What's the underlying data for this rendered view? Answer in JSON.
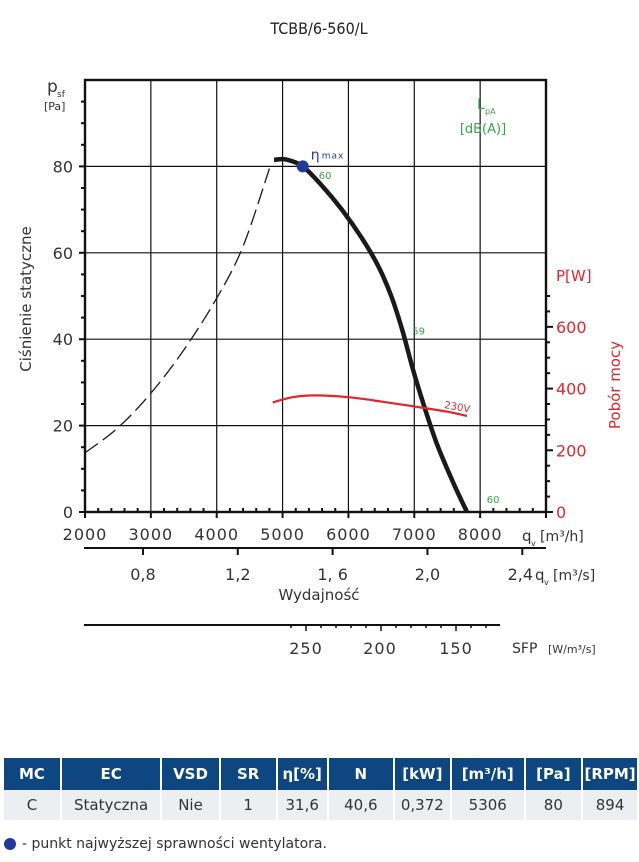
{
  "chart_data": {
    "type": "line",
    "title": "TCBB/6-560/L",
    "xlabel": "Wydajność",
    "x_unit_primary": "q_v [m³/h]",
    "x_unit_secondary": "q_v [m³/s]",
    "x_unit_sfp": "SFP [W/m³/s]",
    "ylabel": "Ciśnienie statyczne",
    "y_unit": "p_sf [Pa]",
    "y2label": "Pobór mocy",
    "y2_unit": "P[W]",
    "lpa_label": "L_pA",
    "lpa_unit": "[dB(A)]",
    "xlim": [
      2000,
      9000
    ],
    "ylim": [
      0,
      100
    ],
    "y2lim": [
      0,
      1400
    ],
    "grid": true,
    "x_ticks": [
      "2000",
      "3000",
      "4000",
      "5000",
      "6000",
      "7000",
      "8000"
    ],
    "x_tick_values": [
      2000,
      3000,
      4000,
      5000,
      6000,
      7000,
      8000
    ],
    "x2_ticks": [
      "0,8",
      "1,2",
      "1, 6",
      "2,0",
      "2,4"
    ],
    "x2_tick_values": [
      0.8,
      1.2,
      1.6,
      2.0,
      2.4
    ],
    "sfp_ticks": [
      "250",
      "200",
      "150"
    ],
    "y_ticks": [
      "0",
      "20",
      "40",
      "60",
      "80"
    ],
    "y_tick_values": [
      0,
      20,
      40,
      60,
      80
    ],
    "y2_ticks": [
      "0",
      "200",
      "400",
      "600"
    ],
    "y2_tick_values": [
      0,
      200,
      400,
      600
    ],
    "series": [
      {
        "name": "Static pressure curve",
        "axis": "left",
        "color": "#1a1a1a",
        "style": "solid",
        "points": [
          [
            4870,
            81.5
          ],
          [
            5050,
            81.6
          ],
          [
            5306,
            80
          ],
          [
            5600,
            75.5
          ],
          [
            5900,
            70
          ],
          [
            6200,
            63.5
          ],
          [
            6450,
            57
          ],
          [
            6650,
            50
          ],
          [
            6820,
            42
          ],
          [
            6980,
            33
          ],
          [
            7150,
            24.5
          ],
          [
            7350,
            15.5
          ],
          [
            7600,
            6.5
          ],
          [
            7800,
            0
          ]
        ]
      },
      {
        "name": "System curve (unstable region)",
        "axis": "left",
        "color": "#1a1a1a",
        "style": "dashed",
        "points": [
          [
            2000,
            13.7
          ],
          [
            2500,
            19.5
          ],
          [
            3000,
            27.5
          ],
          [
            3500,
            37.5
          ],
          [
            4000,
            49.5
          ],
          [
            4400,
            61.5
          ],
          [
            4800,
            79.5
          ]
        ]
      },
      {
        "name": "230V",
        "axis": "right",
        "color": "#e0262c",
        "style": "solid",
        "points": [
          [
            4850,
            355
          ],
          [
            5150,
            372
          ],
          [
            5500,
            378
          ],
          [
            6000,
            372
          ],
          [
            6500,
            358
          ],
          [
            7000,
            342
          ],
          [
            7500,
            325
          ],
          [
            7800,
            311
          ]
        ]
      }
    ],
    "eta_max_point": {
      "label": "ηmax",
      "x": 5306,
      "y": 80,
      "color": "#1f3a9a"
    },
    "noise_labels": [
      {
        "text": "60",
        "x": 5550,
        "y": 78
      },
      {
        "text": "59",
        "x": 6970,
        "y": 42
      },
      {
        "text": "60",
        "x": 8100,
        "y": 3
      }
    ],
    "annotations": [
      {
        "text": "230V",
        "x": 7450,
        "y": 337
      }
    ]
  },
  "table": {
    "headers": [
      "MC",
      "EC",
      "VSD",
      "SR",
      "η[%]",
      "N",
      "[kW]",
      "[m³/h]",
      "[Pa]",
      "[RPM]"
    ],
    "rows": [
      [
        "C",
        "Statyczna",
        "Nie",
        "1",
        "31,6",
        "40,6",
        "0,372",
        "5306",
        "80",
        "894"
      ]
    ]
  },
  "legend_note": "- punkt najwyższej sprawności wentylatora.",
  "colors": {
    "header_bg": "#0d4680",
    "row_bg": "#eceef2",
    "power": "#e0262c",
    "noise": "#3aa24a",
    "eta": "#1f3a9a"
  }
}
